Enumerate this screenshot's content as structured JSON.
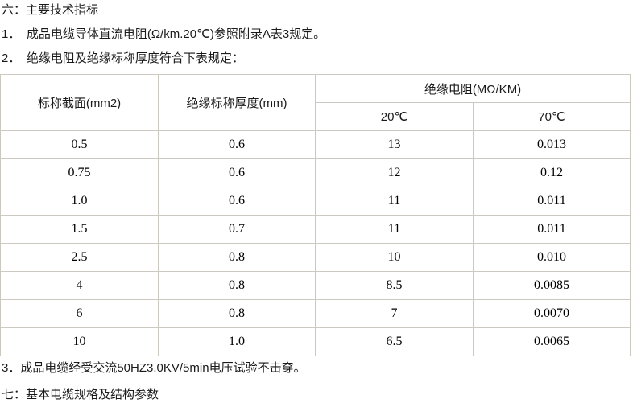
{
  "paragraphs": {
    "heading6": "六：主要技术指标",
    "item1": "1．　成品电缆导体直流电阻(Ω/km.20℃)参照附录A表3规定。",
    "item2": "2．　绝缘电阻及绝缘标称厚度符合下表规定：",
    "item3": "3．成品电缆经受交流50HZ3.0KV/5min电压试验不击穿。",
    "heading7": "七：基本电缆规格及结构参数"
  },
  "table": {
    "headers": {
      "col1": "标称截面(mm2)",
      "col2": "绝缘标称厚度(mm)",
      "group": "绝缘电阻(MΩ/KM)",
      "sub1": "20℃",
      "sub2": "70℃"
    },
    "rows": [
      [
        "0.5",
        "0.6",
        "13",
        "0.013"
      ],
      [
        "0.75",
        "0.6",
        "12",
        "0.12"
      ],
      [
        "1.0",
        "0.6",
        "11",
        "0.011"
      ],
      [
        "1.5",
        "0.7",
        "11",
        "0.011"
      ],
      [
        "2.5",
        "0.8",
        "10",
        "0.010"
      ],
      [
        "4",
        "0.8",
        "8.5",
        "0.0085"
      ],
      [
        "6",
        "0.8",
        "7",
        "0.0070"
      ],
      [
        "10",
        "1.0",
        "6.5",
        "0.0065"
      ]
    ]
  },
  "colors": {
    "border": "#ccc9c0",
    "text": "#1a1a1a",
    "background": "#ffffff"
  }
}
